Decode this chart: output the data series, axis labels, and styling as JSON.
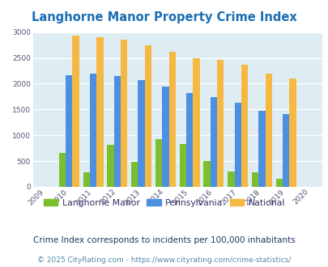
{
  "title": "Langhorne Manor Property Crime Index",
  "years": [
    "2009",
    "2010",
    "2011",
    "2012",
    "2013",
    "2014",
    "2015",
    "2016",
    "2017",
    "2018",
    "2019",
    "2020"
  ],
  "langhorne_manor": [
    0,
    660,
    275,
    820,
    490,
    920,
    830,
    500,
    295,
    280,
    155,
    0
  ],
  "pennsylvania": [
    0,
    2160,
    2200,
    2150,
    2065,
    1940,
    1820,
    1740,
    1630,
    1480,
    1410,
    0
  ],
  "national": [
    0,
    2930,
    2905,
    2860,
    2740,
    2610,
    2500,
    2460,
    2360,
    2190,
    2100,
    0
  ],
  "color_langhorne": "#7bbf2e",
  "color_pennsylvania": "#4d8fe0",
  "color_national": "#f5b942",
  "background_color": "#deedf4",
  "ylim_max": 3000,
  "yticks": [
    0,
    500,
    1000,
    1500,
    2000,
    2500,
    3000
  ],
  "legend_labels": [
    "Langhorne Manor",
    "Pennsylvania",
    "National"
  ],
  "footnote1": "Crime Index corresponds to incidents per 100,000 inhabitants",
  "footnote2": "© 2025 CityRating.com - https://www.cityrating.com/crime-statistics/",
  "title_color": "#1a6eb5",
  "footnote1_color": "#1a3a5c",
  "footnote2_color": "#5588aa",
  "legend_text_color": "#333366"
}
